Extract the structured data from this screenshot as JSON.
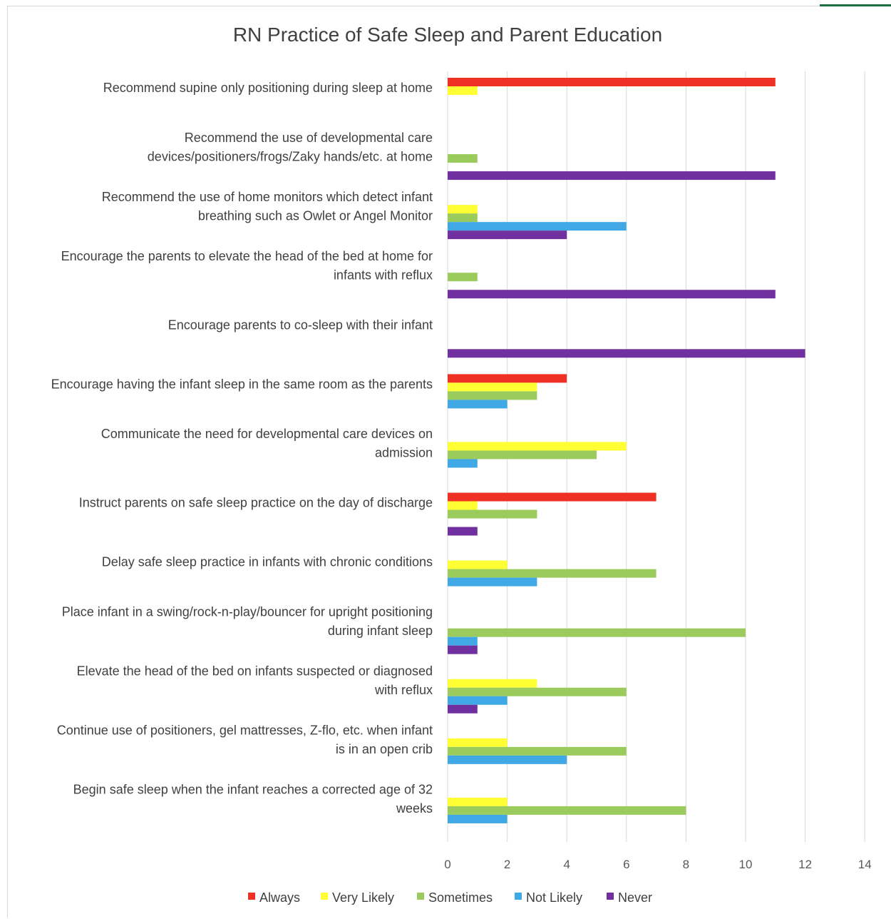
{
  "chart_data": {
    "type": "bar",
    "orientation": "horizontal",
    "title": "RN Practice of Safe Sleep and Parent Education",
    "xlabel": "",
    "ylabel": "",
    "xlim": [
      0,
      14
    ],
    "xticks": [
      0,
      2,
      4,
      6,
      8,
      10,
      12,
      14
    ],
    "grid": "vertical",
    "legend_position": "bottom",
    "categories": [
      [
        "Recommend supine only positioning during sleep at home"
      ],
      [
        "Recommend the use of developmental care",
        "devices/positioners/frogs/Zaky hands/etc. at home"
      ],
      [
        "Recommend the use of home monitors which detect infant",
        "breathing such as Owlet or Angel Monitor"
      ],
      [
        "Encourage the parents to elevate the head of the bed at home for",
        "infants with reflux"
      ],
      [
        "Encourage parents to co-sleep with their infant"
      ],
      [
        "Encourage having the infant sleep in the same room as the parents"
      ],
      [
        "Communicate the need for developmental care devices on",
        "admission"
      ],
      [
        "Instruct parents on safe sleep practice on the day of discharge"
      ],
      [
        "Delay safe sleep practice in infants with chronic conditions"
      ],
      [
        "Place infant in a swing/rock-n-play/bouncer for upright positioning",
        "during infant sleep"
      ],
      [
        "Elevate the head of the bed on infants suspected or diagnosed",
        "with reflux"
      ],
      [
        "Continue use of positioners, gel mattresses, Z-flo, etc. when infant",
        "is in an open crib"
      ],
      [
        "Begin safe sleep when the infant reaches a corrected age of 32",
        "weeks"
      ]
    ],
    "series": [
      {
        "name": "Always",
        "color": "#EE3124",
        "values": [
          11,
          0,
          0,
          0,
          0,
          4,
          0,
          7,
          0,
          0,
          0,
          0,
          0
        ]
      },
      {
        "name": "Very Likely",
        "color": "#FFFF33",
        "values": [
          1,
          0,
          1,
          0,
          0,
          3,
          6,
          1,
          2,
          0,
          3,
          2,
          2
        ]
      },
      {
        "name": "Sometimes",
        "color": "#9BCB5C",
        "values": [
          0,
          1,
          1,
          1,
          0,
          3,
          5,
          3,
          7,
          10,
          6,
          6,
          8
        ]
      },
      {
        "name": "Not Likely",
        "color": "#41A8E6",
        "values": [
          0,
          0,
          6,
          0,
          0,
          2,
          1,
          0,
          3,
          1,
          2,
          4,
          2
        ]
      },
      {
        "name": "Never",
        "color": "#7030A0",
        "values": [
          0,
          11,
          4,
          11,
          12,
          0,
          0,
          1,
          0,
          1,
          1,
          0,
          0
        ]
      }
    ]
  }
}
